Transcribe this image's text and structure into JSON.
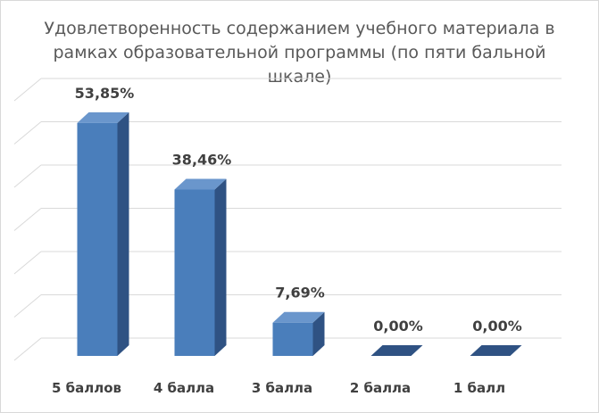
{
  "chart_data": {
    "type": "bar",
    "title": "Удовлетворенность содержанием учебного материала в рамках образовательной программы (по пяти бальной шкале)",
    "categories": [
      "5 баллов",
      "4 балла",
      "3  балла",
      "2 балла",
      "1 балл"
    ],
    "values": [
      53.85,
      38.46,
      7.69,
      0.0,
      0.0
    ],
    "data_labels": [
      "53,85%",
      "38,46%",
      "7,69%",
      "0,00%",
      "0,00%"
    ],
    "xlabel": "",
    "ylabel": "",
    "ylim": [
      0,
      60
    ],
    "grid": true,
    "style": "3d-column",
    "colors": {
      "bar_front": "#4a7ebb",
      "bar_side": "#2f5283",
      "bar_top": "#6a96cc",
      "grid": "#d9d9d9",
      "text": "#404040",
      "title": "#595959"
    }
  }
}
